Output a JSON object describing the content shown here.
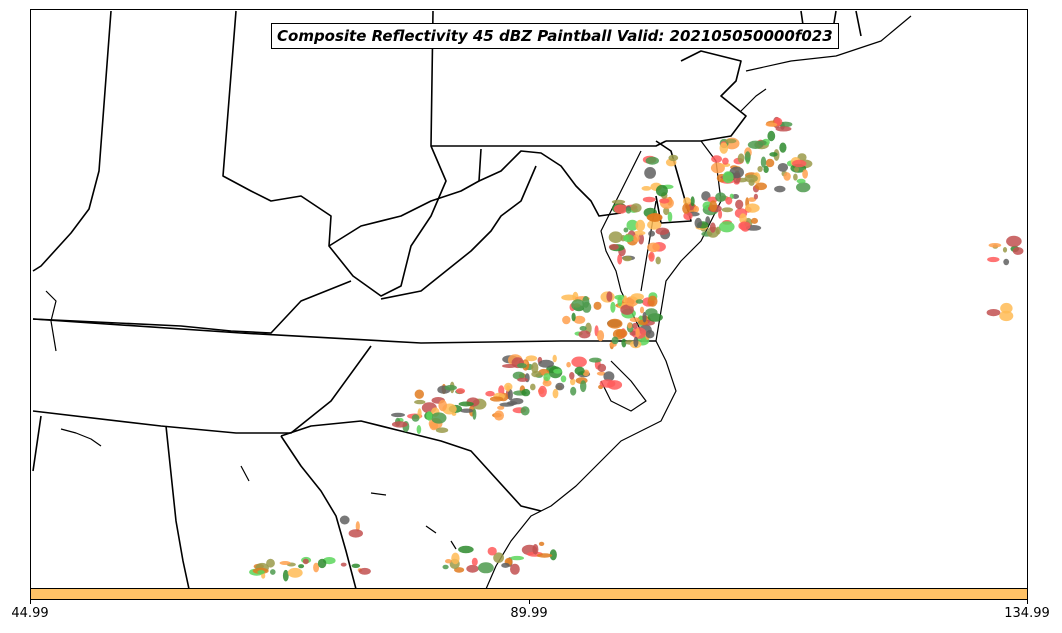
{
  "title": "Composite Reflectivity 45 dBZ Paintball Valid: 202105050000f023",
  "colorbar": {
    "color": "#ffc266",
    "tick_labels": [
      "44.99",
      "89.99",
      "134.99"
    ]
  },
  "colors": {
    "boundary": "#000000",
    "paintball_palette": [
      "#ff5a5a",
      "#ffa04d",
      "#5cd65c",
      "#606060",
      "#9a9a4a",
      "#c25050",
      "#4e9a4e",
      "#ffbb55",
      "#2e8b2e",
      "#e07b20"
    ]
  }
}
